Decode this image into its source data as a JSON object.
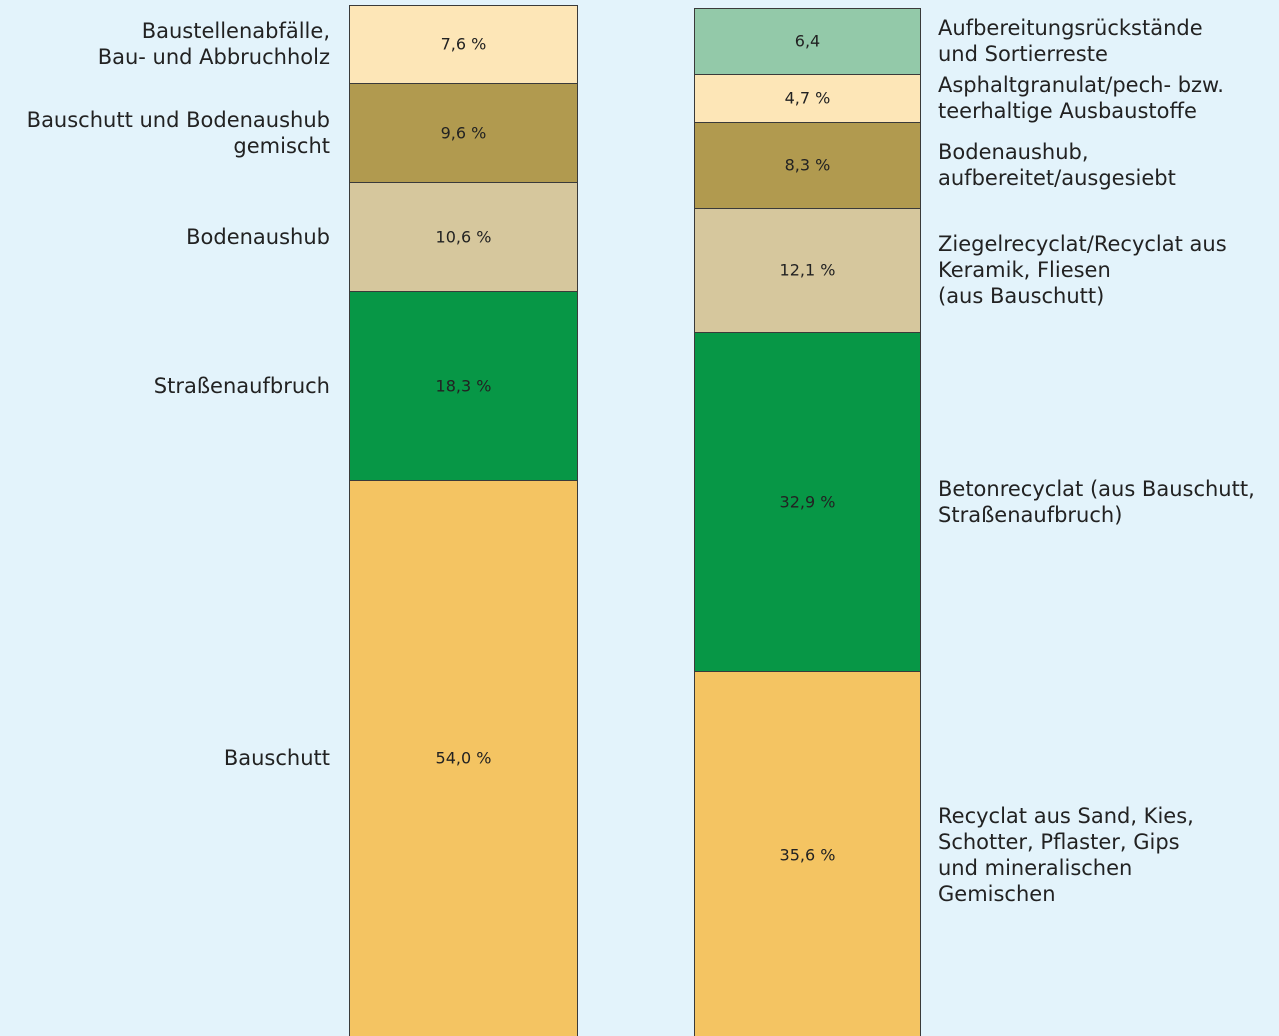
{
  "chart_data": [
    {
      "type": "stacked_column",
      "categories": [
        "Baustellenabfälle,\nBau- und Abbruchholz",
        "Bauschutt und Bodenaushub\ngemischt",
        "Bodenaushub",
        "Straßenaufbruch",
        "Bauschutt"
      ],
      "values": [
        7.6,
        9.6,
        10.6,
        18.3,
        54.0
      ],
      "value_labels": [
        "7,6 %",
        "9,6 %",
        "10,6 %",
        "18,3 %",
        "54,0 %"
      ],
      "colors": [
        "#fde6b7",
        "#b19a4f",
        "#d6c79d",
        "#079746",
        "#f4c462"
      ],
      "label_side": "left"
    },
    {
      "type": "stacked_column",
      "categories": [
        "Aufbereitungsrückstände\nund Sortierreste",
        "Asphaltgranulat/pech- bzw.\nteerhaltige Ausbaustoffe",
        "Bodenaushub,\naufbereitet/ausgesiebt",
        "Ziegelrecyclat/Recyclat aus\nKeramik, Fliesen\n(aus Bauschutt)",
        "Betonrecyclat (aus Bauschutt,\nStraßenaufbruch)",
        "Recyclat aus Sand, Kies,\nSchotter, Pflaster, Gips\nund mineralischen\nGemischen"
      ],
      "values": [
        6.4,
        4.7,
        8.3,
        12.1,
        32.9,
        35.6
      ],
      "value_labels": [
        "6,4",
        "4,7 %",
        "8,3 %",
        "12,1 %",
        "32,9 %",
        "35,6 %"
      ],
      "colors": [
        "#93c9a9",
        "#fde6b7",
        "#b19a4f",
        "#d6c79d",
        "#079746",
        "#f4c462"
      ],
      "label_side": "right"
    }
  ]
}
